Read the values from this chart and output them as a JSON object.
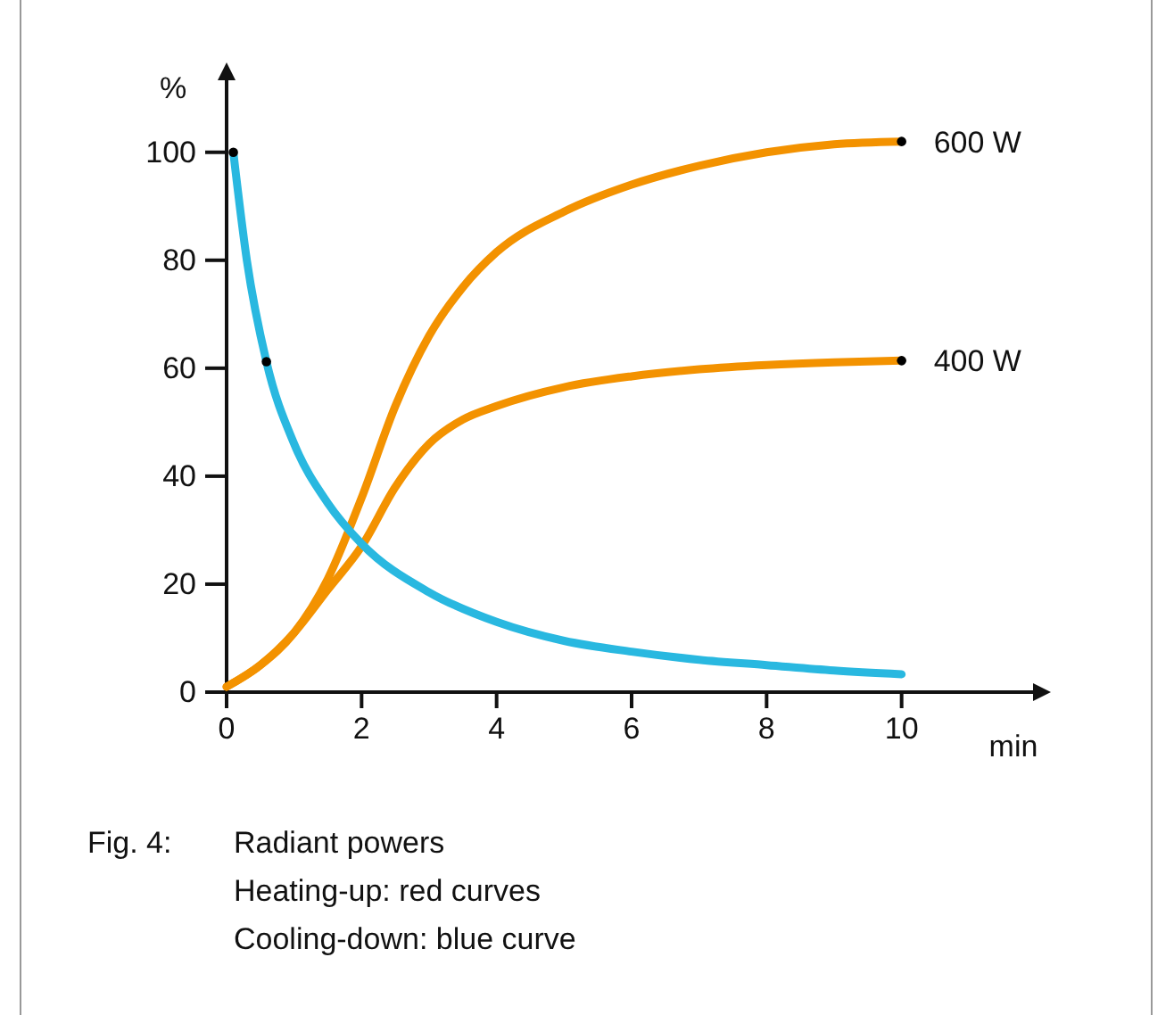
{
  "chart_data": {
    "type": "line",
    "ylabel": "%",
    "xlabel": "min",
    "xlim": [
      0,
      12
    ],
    "ylim": [
      0,
      114
    ],
    "xticks": [
      0,
      2,
      4,
      6,
      8,
      10
    ],
    "yticks": [
      0,
      20,
      40,
      60,
      80,
      100
    ],
    "grid": false,
    "marker": "none",
    "line_style": "solid",
    "series": [
      {
        "name": "600 W",
        "color": "#f39200",
        "x": [
          0,
          0.5,
          1,
          1.5,
          2,
          2.5,
          3,
          3.5,
          4,
          5,
          6,
          7,
          8,
          9,
          10
        ],
        "values": [
          1,
          5,
          11,
          21,
          36,
          53,
          66,
          75,
          81.5,
          89,
          94,
          97.5,
          100,
          101.5,
          102
        ]
      },
      {
        "name": "400 W",
        "color": "#f39200",
        "x": [
          0,
          0.5,
          1,
          1.5,
          2,
          2.5,
          3,
          3.5,
          4,
          5,
          6,
          7,
          8,
          9,
          10
        ],
        "values": [
          1,
          5,
          11,
          19,
          27,
          38,
          46,
          50.5,
          53,
          56.5,
          58.5,
          59.8,
          60.6,
          61.1,
          61.4
        ]
      },
      {
        "color": "#29b8e0",
        "x": [
          0.1,
          0.3,
          0.59,
          1,
          1.5,
          2,
          3,
          4,
          5,
          6,
          7,
          8,
          9,
          10
        ],
        "values": [
          100,
          80,
          61.2,
          46,
          35,
          27.5,
          18.5,
          13,
          9.5,
          7.5,
          6,
          5,
          4,
          3.3
        ]
      },
      {
        "type": "scatter",
        "marker": "circle",
        "color": "#000000",
        "x": [
          0.1,
          0.59,
          10,
          10
        ],
        "values": [
          100,
          61.2,
          102,
          61.4
        ]
      }
    ],
    "annotations": [
      "Fig. 4:",
      "Radiant powers",
      "Heating-up: red curves",
      "Cooling-down: blue curve"
    ]
  }
}
